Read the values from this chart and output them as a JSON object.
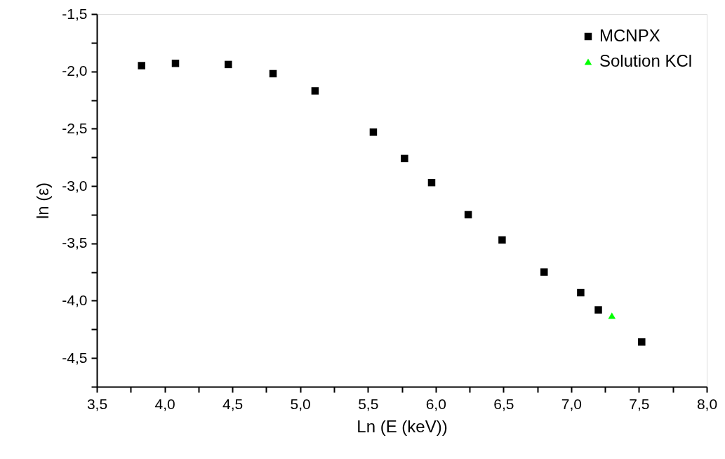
{
  "chart_data": {
    "type": "scatter",
    "xlabel": "Ln (E (keV))",
    "ylabel": "ln (ε)",
    "xlim": [
      3.5,
      8.0
    ],
    "ylim": [
      -4.75,
      -1.5
    ],
    "xticks": [
      {
        "value": 3.5,
        "label": "3,5"
      },
      {
        "value": 3.75,
        "label": null
      },
      {
        "value": 4.0,
        "label": "4,0"
      },
      {
        "value": 4.25,
        "label": null
      },
      {
        "value": 4.5,
        "label": "4,5"
      },
      {
        "value": 4.75,
        "label": null
      },
      {
        "value": 5.0,
        "label": "5,0"
      },
      {
        "value": 5.25,
        "label": null
      },
      {
        "value": 5.5,
        "label": "5,5"
      },
      {
        "value": 5.75,
        "label": null
      },
      {
        "value": 6.0,
        "label": "6,0"
      },
      {
        "value": 6.25,
        "label": null
      },
      {
        "value": 6.5,
        "label": "6,5"
      },
      {
        "value": 6.75,
        "label": null
      },
      {
        "value": 7.0,
        "label": "7,0"
      },
      {
        "value": 7.25,
        "label": null
      },
      {
        "value": 7.5,
        "label": "7,5"
      },
      {
        "value": 7.75,
        "label": null
      },
      {
        "value": 8.0,
        "label": "8,0"
      }
    ],
    "yticks": [
      {
        "value": -1.5,
        "label": "-1,5"
      },
      {
        "value": -1.75,
        "label": null
      },
      {
        "value": -2.0,
        "label": "-2,0"
      },
      {
        "value": -2.25,
        "label": null
      },
      {
        "value": -2.5,
        "label": "-2,5"
      },
      {
        "value": -2.75,
        "label": null
      },
      {
        "value": -3.0,
        "label": "-3,0"
      },
      {
        "value": -3.25,
        "label": null
      },
      {
        "value": -3.5,
        "label": "-3,5"
      },
      {
        "value": -3.75,
        "label": null
      },
      {
        "value": -4.0,
        "label": "-4,0"
      },
      {
        "value": -4.25,
        "label": null
      },
      {
        "value": -4.5,
        "label": "-4,5"
      },
      {
        "value": -4.75,
        "label": null
      }
    ],
    "grid": false,
    "legend": "top right",
    "series": [
      {
        "name": "MCNPX",
        "color": "#000000",
        "marker": "square",
        "x": [
          3.83,
          4.08,
          4.47,
          4.8,
          5.11,
          5.54,
          5.77,
          5.97,
          6.24,
          6.49,
          6.8,
          7.07,
          7.2,
          7.52
        ],
        "values": [
          -1.95,
          -1.93,
          -1.94,
          -2.02,
          -2.17,
          -2.53,
          -2.76,
          -2.97,
          -3.25,
          -3.47,
          -3.75,
          -3.93,
          -4.08,
          -4.36
        ]
      },
      {
        "name": "Solution KCl",
        "color": "#00ff00",
        "marker": "triangle",
        "x": [
          7.3
        ],
        "values": [
          -4.13
        ]
      }
    ]
  }
}
